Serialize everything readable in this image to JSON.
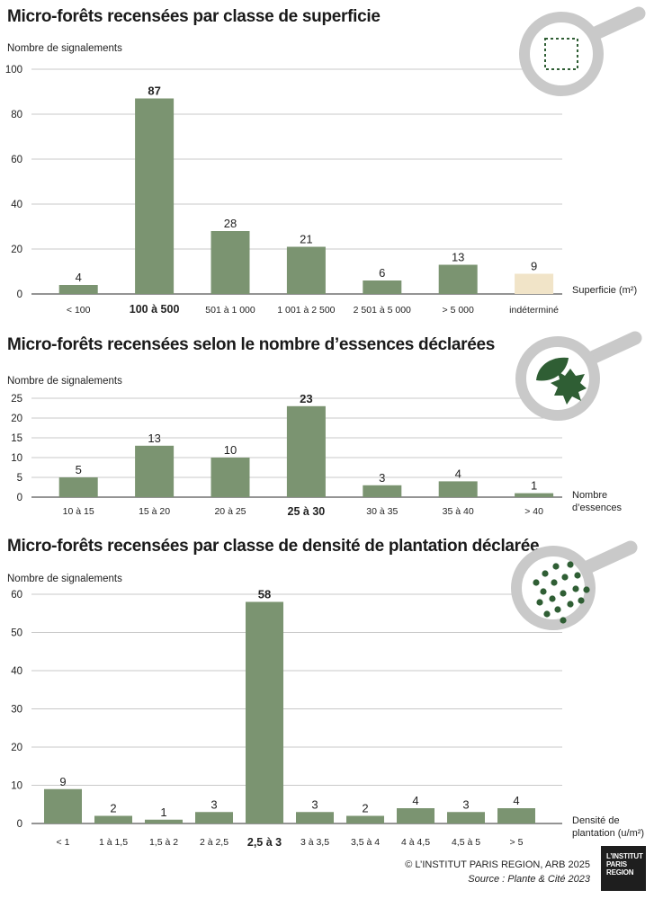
{
  "colors": {
    "bar": "#7b9471",
    "bar_undetermined": "#f1e4c8",
    "grid": "#c8c8c8",
    "axis": "#555555",
    "icon_ring": "#c9c9c9",
    "icon_dark": "#2f5e34"
  },
  "chart_data": [
    {
      "type": "bar",
      "title": "Micro-forêts recensées par classe de superficie",
      "ylabel": "Nombre de signalements",
      "xlabel": "Superficie (m²)",
      "xlabel_lines": [
        "Superficie (m²)"
      ],
      "ylim": [
        0,
        100
      ],
      "yticks": [
        0,
        20,
        40,
        60,
        80,
        100
      ],
      "categories": [
        "< 100",
        "100 à 500",
        "501 à 1 000",
        "1 001 à 2 500",
        "2 501 à 5 000",
        "> 5 000",
        "indéterminé"
      ],
      "values": [
        4,
        87,
        28,
        21,
        6,
        13,
        9
      ],
      "highlight_index": 1,
      "special_index": 6,
      "icon": "magnifier-area-icon"
    },
    {
      "type": "bar",
      "title": "Micro-forêts recensées selon le nombre d’essences déclarées",
      "ylabel": "Nombre de signalements",
      "xlabel": "Nombre d’essences",
      "xlabel_lines": [
        "Nombre",
        "d’essences"
      ],
      "ylim": [
        0,
        25
      ],
      "yticks": [
        0,
        5,
        10,
        15,
        20,
        25
      ],
      "categories": [
        "10 à 15",
        "15 à 20",
        "20 à 25",
        "25 à 30",
        "30 à 35",
        "35 à 40",
        "> 40"
      ],
      "values": [
        5,
        13,
        10,
        23,
        3,
        4,
        1
      ],
      "highlight_index": 3,
      "special_index": -1,
      "icon": "magnifier-leaves-icon"
    },
    {
      "type": "bar",
      "title": "Micro-forêts recensées par classe de densité de plantation déclarée",
      "ylabel": "Nombre de signalements",
      "xlabel": "Densité de plantation (u/m²)",
      "xlabel_lines": [
        "Densité de",
        "plantation (u/m²)"
      ],
      "ylim": [
        0,
        60
      ],
      "yticks": [
        0,
        10,
        20,
        30,
        40,
        50,
        60
      ],
      "categories": [
        "< 1",
        "1 à 1,5",
        "1,5 à 2",
        "2 à 2,5",
        "2,5 à 3",
        "3 à 3,5",
        "3,5 à 4",
        "4 à 4,5",
        "4,5 à 5",
        "> 5"
      ],
      "values": [
        9,
        2,
        1,
        3,
        58,
        3,
        2,
        4,
        3,
        4
      ],
      "highlight_index": 4,
      "special_index": -1,
      "icon": "magnifier-dots-icon"
    }
  ],
  "footer": {
    "copyright": "© L’INSTITUT PARIS REGION, ARB 2025",
    "source": "Source : Plante & Cité 2023",
    "logo_lines": [
      "L’INSTITUT",
      "PARIS",
      "REGION"
    ]
  }
}
